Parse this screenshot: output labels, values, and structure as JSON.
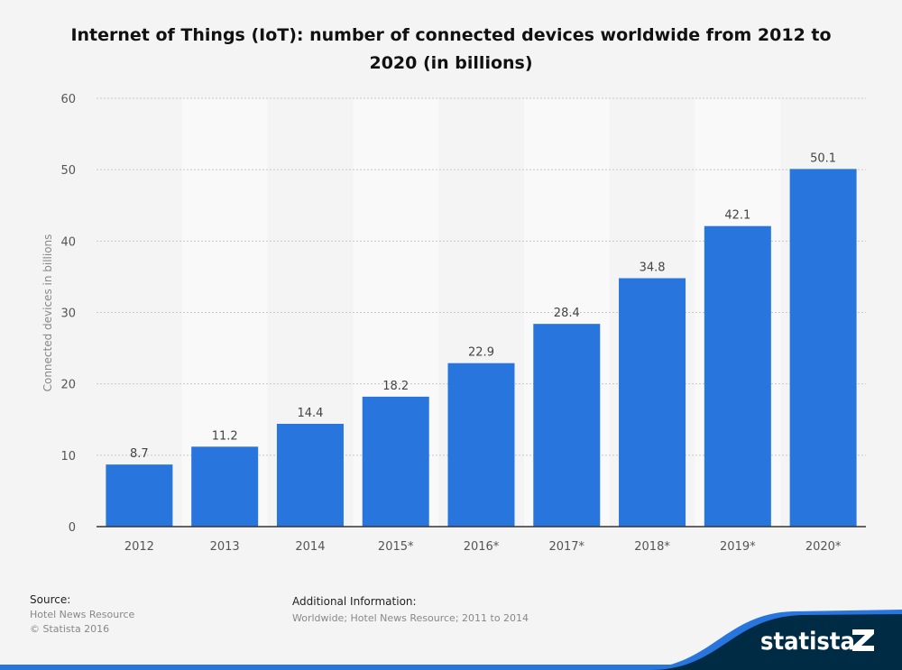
{
  "chart_data": {
    "type": "bar",
    "title": "Internet of Things (IoT): number of connected devices worldwide from 2012 to 2020 (in billions)",
    "categories": [
      "2012",
      "2013",
      "2014",
      "2015*",
      "2016*",
      "2017*",
      "2018*",
      "2019*",
      "2020*"
    ],
    "values": [
      8.7,
      11.2,
      14.4,
      18.2,
      22.9,
      28.4,
      34.8,
      42.1,
      50.1
    ],
    "value_labels": [
      "8.7",
      "11.2",
      "14.4",
      "18.2",
      "22.9",
      "28.4",
      "34.8",
      "42.1",
      "50.1"
    ],
    "xlabel": "",
    "ylabel": "Connected devices in billions",
    "ylim": [
      0,
      60
    ],
    "yticks": [
      "0",
      "10",
      "20",
      "30",
      "40",
      "50",
      "60"
    ],
    "grid": true,
    "bar_color": "#2876dd"
  },
  "footer": {
    "source_label": "Source:",
    "source_lines": [
      "Hotel News Resource",
      "© Statista 2016"
    ],
    "info_label": "Additional Information:",
    "info_text": "Worldwide; Hotel News Resource; 2011 to 2014",
    "logo": "statista",
    "logo_color": "#002b45"
  }
}
